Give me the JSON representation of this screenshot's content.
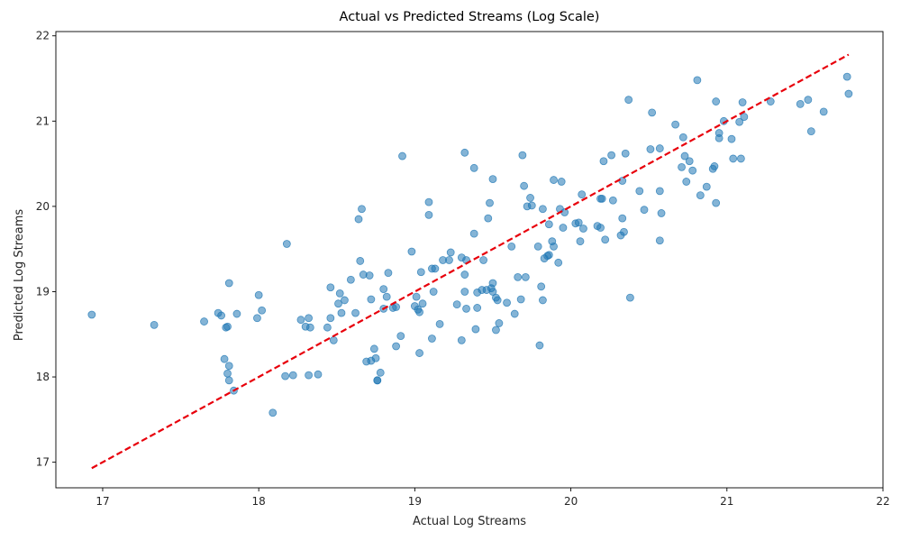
{
  "chart_data": {
    "type": "scatter",
    "title": "Actual vs Predicted Streams (Log Scale)",
    "xlabel": "Actual Log Streams",
    "ylabel": "Predicted Log Streams",
    "xlim": [
      16.7,
      22.0
    ],
    "ylim": [
      16.7,
      22.05
    ],
    "xticks": [
      17,
      18,
      19,
      20,
      21,
      22
    ],
    "yticks": [
      17,
      18,
      19,
      20,
      21,
      22
    ],
    "grid": false,
    "point_color": "#1f77b4",
    "reference_line": {
      "from": [
        16.93,
        16.93
      ],
      "to": [
        21.78,
        21.78
      ],
      "color": "#e8000b",
      "style": "dashed"
    },
    "points": [
      [
        16.93,
        18.73
      ],
      [
        17.33,
        18.61
      ],
      [
        17.65,
        18.65
      ],
      [
        17.74,
        18.75
      ],
      [
        17.76,
        18.72
      ],
      [
        17.78,
        18.21
      ],
      [
        17.79,
        18.58
      ],
      [
        17.8,
        18.59
      ],
      [
        17.8,
        18.04
      ],
      [
        17.81,
        18.13
      ],
      [
        17.81,
        17.96
      ],
      [
        17.81,
        19.1
      ],
      [
        17.84,
        17.84
      ],
      [
        17.86,
        18.74
      ],
      [
        17.99,
        18.69
      ],
      [
        18.0,
        18.96
      ],
      [
        18.02,
        18.78
      ],
      [
        18.09,
        17.58
      ],
      [
        18.17,
        18.01
      ],
      [
        18.18,
        19.56
      ],
      [
        18.22,
        18.02
      ],
      [
        18.27,
        18.67
      ],
      [
        18.3,
        18.59
      ],
      [
        18.32,
        18.69
      ],
      [
        18.32,
        18.02
      ],
      [
        18.33,
        18.58
      ],
      [
        18.38,
        18.03
      ],
      [
        18.44,
        18.58
      ],
      [
        18.46,
        18.69
      ],
      [
        18.46,
        19.05
      ],
      [
        18.48,
        18.43
      ],
      [
        18.51,
        18.86
      ],
      [
        18.52,
        18.98
      ],
      [
        18.53,
        18.75
      ],
      [
        18.55,
        18.9
      ],
      [
        18.59,
        19.14
      ],
      [
        18.62,
        18.75
      ],
      [
        18.64,
        19.85
      ],
      [
        18.65,
        19.36
      ],
      [
        18.66,
        19.97
      ],
      [
        18.67,
        19.2
      ],
      [
        18.69,
        18.18
      ],
      [
        18.71,
        19.19
      ],
      [
        18.72,
        18.91
      ],
      [
        18.72,
        18.19
      ],
      [
        18.74,
        18.33
      ],
      [
        18.75,
        18.22
      ],
      [
        18.76,
        17.96
      ],
      [
        18.76,
        17.96
      ],
      [
        18.78,
        18.05
      ],
      [
        18.8,
        18.8
      ],
      [
        18.8,
        19.03
      ],
      [
        18.82,
        18.94
      ],
      [
        18.83,
        19.22
      ],
      [
        18.86,
        18.81
      ],
      [
        18.88,
        18.82
      ],
      [
        18.88,
        18.36
      ],
      [
        18.91,
        18.48
      ],
      [
        18.92,
        20.59
      ],
      [
        18.98,
        19.47
      ],
      [
        19.0,
        18.83
      ],
      [
        19.01,
        18.94
      ],
      [
        19.02,
        18.79
      ],
      [
        19.03,
        18.28
      ],
      [
        19.03,
        18.76
      ],
      [
        19.04,
        19.23
      ],
      [
        19.05,
        18.86
      ],
      [
        19.09,
        20.05
      ],
      [
        19.09,
        19.9
      ],
      [
        19.11,
        19.27
      ],
      [
        19.11,
        18.45
      ],
      [
        19.12,
        19.0
      ],
      [
        19.13,
        19.27
      ],
      [
        19.16,
        18.62
      ],
      [
        19.18,
        19.37
      ],
      [
        19.22,
        19.37
      ],
      [
        19.23,
        19.46
      ],
      [
        19.27,
        18.85
      ],
      [
        19.3,
        19.4
      ],
      [
        19.3,
        18.43
      ],
      [
        19.32,
        20.63
      ],
      [
        19.32,
        19.2
      ],
      [
        19.32,
        19.0
      ],
      [
        19.33,
        18.8
      ],
      [
        19.33,
        19.37
      ],
      [
        19.38,
        20.45
      ],
      [
        19.38,
        19.68
      ],
      [
        19.39,
        18.56
      ],
      [
        19.4,
        18.81
      ],
      [
        19.4,
        18.99
      ],
      [
        19.43,
        19.02
      ],
      [
        19.44,
        19.37
      ],
      [
        19.46,
        19.02
      ],
      [
        19.47,
        19.86
      ],
      [
        19.48,
        20.04
      ],
      [
        19.49,
        19.04
      ],
      [
        19.5,
        19.1
      ],
      [
        19.5,
        20.32
      ],
      [
        19.5,
        19.0
      ],
      [
        19.52,
        18.55
      ],
      [
        19.52,
        18.93
      ],
      [
        19.53,
        18.9
      ],
      [
        19.54,
        18.63
      ],
      [
        19.59,
        18.87
      ],
      [
        19.62,
        19.53
      ],
      [
        19.64,
        18.74
      ],
      [
        19.66,
        19.17
      ],
      [
        19.68,
        18.91
      ],
      [
        19.69,
        20.6
      ],
      [
        19.7,
        20.24
      ],
      [
        19.71,
        19.17
      ],
      [
        19.72,
        20.0
      ],
      [
        19.74,
        20.1
      ],
      [
        19.75,
        20.01
      ],
      [
        19.79,
        19.53
      ],
      [
        19.8,
        18.37
      ],
      [
        19.81,
        19.06
      ],
      [
        19.82,
        19.97
      ],
      [
        19.82,
        18.9
      ],
      [
        19.83,
        19.39
      ],
      [
        19.85,
        19.42
      ],
      [
        19.86,
        19.79
      ],
      [
        19.86,
        19.43
      ],
      [
        19.88,
        19.59
      ],
      [
        19.89,
        20.31
      ],
      [
        19.89,
        19.53
      ],
      [
        19.92,
        19.34
      ],
      [
        19.93,
        19.97
      ],
      [
        19.94,
        20.29
      ],
      [
        19.95,
        19.75
      ],
      [
        19.96,
        19.93
      ],
      [
        20.03,
        19.8
      ],
      [
        20.05,
        19.81
      ],
      [
        20.06,
        19.59
      ],
      [
        20.07,
        20.14
      ],
      [
        20.08,
        19.74
      ],
      [
        20.17,
        19.77
      ],
      [
        20.19,
        20.09
      ],
      [
        20.19,
        19.75
      ],
      [
        20.2,
        20.09
      ],
      [
        20.21,
        20.53
      ],
      [
        20.22,
        19.61
      ],
      [
        20.26,
        20.6
      ],
      [
        20.27,
        20.07
      ],
      [
        20.32,
        19.66
      ],
      [
        20.33,
        19.86
      ],
      [
        20.33,
        20.3
      ],
      [
        20.34,
        19.7
      ],
      [
        20.35,
        20.62
      ],
      [
        20.37,
        21.25
      ],
      [
        20.38,
        18.93
      ],
      [
        20.44,
        20.18
      ],
      [
        20.47,
        19.96
      ],
      [
        20.51,
        20.67
      ],
      [
        20.52,
        21.1
      ],
      [
        20.57,
        20.68
      ],
      [
        20.57,
        19.6
      ],
      [
        20.57,
        20.18
      ],
      [
        20.58,
        19.92
      ],
      [
        20.67,
        20.96
      ],
      [
        20.71,
        20.46
      ],
      [
        20.72,
        20.81
      ],
      [
        20.73,
        20.59
      ],
      [
        20.74,
        20.29
      ],
      [
        20.76,
        20.53
      ],
      [
        20.78,
        20.42
      ],
      [
        20.81,
        21.48
      ],
      [
        20.83,
        20.13
      ],
      [
        20.87,
        20.23
      ],
      [
        20.91,
        20.44
      ],
      [
        20.92,
        20.47
      ],
      [
        20.93,
        20.04
      ],
      [
        20.93,
        21.23
      ],
      [
        20.95,
        20.8
      ],
      [
        20.95,
        20.86
      ],
      [
        20.98,
        21.0
      ],
      [
        21.03,
        20.79
      ],
      [
        21.04,
        20.56
      ],
      [
        21.08,
        20.99
      ],
      [
        21.09,
        20.56
      ],
      [
        21.1,
        21.22
      ],
      [
        21.11,
        21.05
      ],
      [
        21.28,
        21.23
      ],
      [
        21.47,
        21.2
      ],
      [
        21.52,
        21.25
      ],
      [
        21.54,
        20.88
      ],
      [
        21.62,
        21.11
      ],
      [
        21.77,
        21.52
      ],
      [
        21.78,
        21.32
      ]
    ]
  }
}
